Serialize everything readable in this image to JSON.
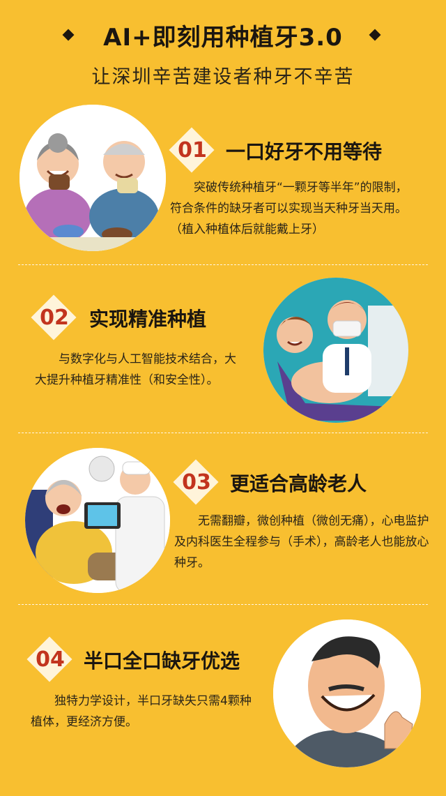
{
  "header": {
    "title": "AI+即刻用种植牙3.0",
    "subtitle": "让深圳辛苦建设者种牙不辛苦"
  },
  "sections": [
    {
      "number": "01",
      "heading": "一口好牙不用等待",
      "description": "突破传统种植牙“一颗牙等半年”的限制， 符合条件的缺牙者可以实现当天种牙当天用。（植入种植体后就能戴上牙）",
      "image_icon": "elderly-couple-eating-illustration"
    },
    {
      "number": "02",
      "heading": "实现精准种植",
      "description": "与数字化与人工智能技术结合，大大提升种植牙精准性（和安全性）。",
      "image_icon": "dentist-treating-patient-illustration"
    },
    {
      "number": "03",
      "heading": "更适合高龄老人",
      "description": "无需翻瓣，微创种植（微创无痛），心电监护及内科医生全程参与（手术），高龄老人也能放心种牙。",
      "image_icon": "elderly-patient-with-doctor-illustration"
    },
    {
      "number": "04",
      "heading": "半口全口缺牙优选",
      "description": "独特力学设计，半口牙缺失只需4颗种植体，更经济方便。",
      "image_icon": "smiling-man-thumbs-up-illustration"
    }
  ],
  "colors": {
    "background": "#F8BF30",
    "badge_fill": "#FFF4DA",
    "badge_number": "#C2341E",
    "text": "#1b1610"
  }
}
